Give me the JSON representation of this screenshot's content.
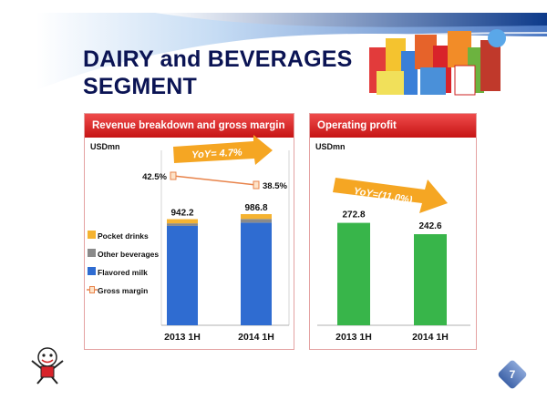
{
  "slide": {
    "title_line1": "DAIRY and BEVERAGES",
    "title_line2": "SEGMENT",
    "page_number": "7"
  },
  "colors": {
    "navy": "#0b1454",
    "blue_bar": "#2f6cd1",
    "gray_bar": "#8a8a8a",
    "orange_bar": "#f5b331",
    "green_bar": "#38b54a",
    "red_header": "#d41c1c",
    "yoy_arrow": "#f5a623"
  },
  "left_panel": {
    "header": "Revenue breakdown and gross margin",
    "unit": "USDmn",
    "yoy_label": "YoY= 4.7%"
  },
  "right_panel": {
    "header": "Operating profit",
    "unit": "USDmn",
    "yoy_label": "YoY=(11.0%)"
  },
  "chart_data": [
    {
      "type": "bar",
      "stacked": true,
      "title": "Revenue breakdown and gross margin",
      "unit": "USDmn",
      "categories": [
        "2013 1H",
        "2014 1H"
      ],
      "totals": [
        942.2,
        986.8
      ],
      "total_labels": [
        "942.2",
        "986.8"
      ],
      "series": [
        {
          "name": "Flavored milk",
          "values": [
            882,
            911
          ],
          "color": "#2f6cd1"
        },
        {
          "name": "Other beverages",
          "values": [
            23,
            33
          ],
          "color": "#8a8a8a"
        },
        {
          "name": "Pocket drinks",
          "values": [
            37.2,
            42.8
          ],
          "color": "#f5b331"
        }
      ],
      "line_series": {
        "name": "Gross margin",
        "values": [
          42.5,
          38.5
        ],
        "labels": [
          "42.5%",
          "38.5%"
        ],
        "color": "#e8834a"
      },
      "annotation": "YoY= 4.7%",
      "ylim": [
        0,
        1100
      ],
      "legend": [
        "Pocket drinks",
        "Other beverages",
        "Flavored milk",
        "Gross margin"
      ],
      "legend_position": "left"
    },
    {
      "type": "bar",
      "title": "Operating profit",
      "unit": "USDmn",
      "categories": [
        "2013 1H",
        "2014 1H"
      ],
      "values": [
        272.8,
        242.6
      ],
      "value_labels": [
        "272.8",
        "242.6"
      ],
      "color": "#38b54a",
      "annotation": "YoY=(11.0%)",
      "ylim": [
        0,
        330
      ]
    }
  ]
}
